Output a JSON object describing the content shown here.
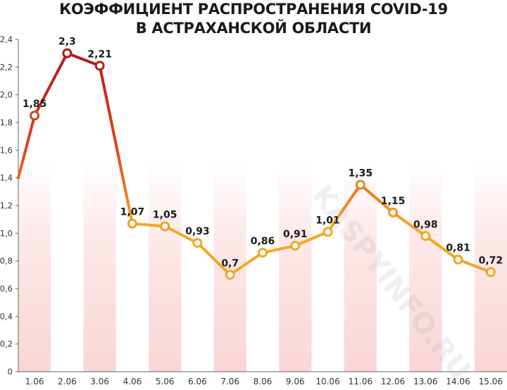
{
  "chart_data": {
    "type": "line",
    "title_lines": [
      "КОЭФФИЦИЕНТ РАСПРОСТРАНЕНИЯ COVID-19",
      "В АСТРАХАНСКОЙ ОБЛАСТИ"
    ],
    "categories": [
      "1.06",
      "2.06",
      "3.06",
      "4.06",
      "5.06",
      "6.06",
      "7.06",
      "8.06",
      "9.06",
      "10.06",
      "11.06",
      "12.06",
      "13.06",
      "14.06",
      "15.06"
    ],
    "values": [
      1.85,
      2.3,
      2.21,
      1.07,
      1.05,
      0.93,
      0.7,
      0.86,
      0.91,
      1.01,
      1.35,
      1.15,
      0.98,
      0.81,
      0.72
    ],
    "value_labels": [
      "1,85",
      "2,3",
      "2,21",
      "1,07",
      "1,05",
      "0,93",
      "0,7",
      "0,86",
      "0,91",
      "1,01",
      "1,35",
      "1,15",
      "0,98",
      "0,81",
      "0,72"
    ],
    "y_ticks": [
      "0",
      "0,2",
      "0,4",
      "0,6",
      "0,8",
      "1,0",
      "1,2",
      "1,4",
      "1,6",
      "1,8",
      "2,0",
      "2,2",
      "2,4"
    ],
    "ylim": [
      0,
      2.4
    ],
    "start_value": 1.4,
    "watermark": "KASPYINFO.RU",
    "colors": {
      "high": "#b01818",
      "low": "#f5a623",
      "stripe": "#fbe3e3"
    }
  }
}
